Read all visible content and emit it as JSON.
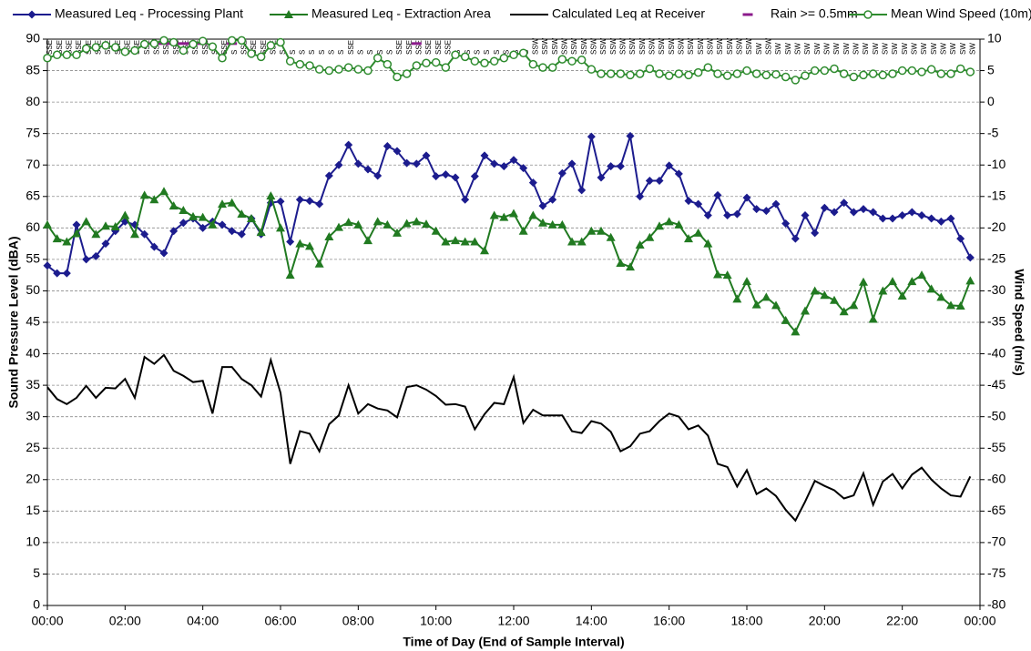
{
  "chart_data": {
    "type": "line",
    "x_label": "Time of Day (End of Sample Interval)",
    "y_label": "Sound Pressure Level (dBA)",
    "y2_label": "Wind Speed (m/s)",
    "xlim": [
      0,
      24
    ],
    "xticks": [
      {
        "value": 0,
        "label": "00:00"
      },
      {
        "value": 2,
        "label": "02:00"
      },
      {
        "value": 4,
        "label": "04:00"
      },
      {
        "value": 6,
        "label": "06:00"
      },
      {
        "value": 8,
        "label": "08:00"
      },
      {
        "value": 10,
        "label": "10:00"
      },
      {
        "value": 12,
        "label": "12:00"
      },
      {
        "value": 14,
        "label": "14:00"
      },
      {
        "value": 16,
        "label": "16:00"
      },
      {
        "value": 18,
        "label": "18:00"
      },
      {
        "value": 20,
        "label": "20:00"
      },
      {
        "value": 22,
        "label": "22:00"
      },
      {
        "value": 24,
        "label": "00:00"
      }
    ],
    "ylim": [
      0,
      90
    ],
    "yticks": [
      0,
      5,
      10,
      15,
      20,
      25,
      30,
      35,
      40,
      45,
      50,
      55,
      60,
      65,
      70,
      75,
      80,
      85,
      90
    ],
    "y2lim": [
      -80,
      10
    ],
    "y2ticks": [
      -80,
      -75,
      -70,
      -65,
      -60,
      -55,
      -50,
      -45,
      -40,
      -35,
      -30,
      -25,
      -20,
      -15,
      -10,
      -5,
      0,
      5,
      10
    ],
    "grid": true,
    "legend": "top",
    "x": [
      0,
      0.25,
      0.5,
      0.75,
      1,
      1.25,
      1.5,
      1.75,
      2,
      2.25,
      2.5,
      2.75,
      3,
      3.25,
      3.5,
      3.75,
      4,
      4.25,
      4.5,
      4.75,
      5,
      5.25,
      5.5,
      5.75,
      6,
      6.25,
      6.5,
      6.75,
      7,
      7.25,
      7.5,
      7.75,
      8,
      8.25,
      8.5,
      8.75,
      9,
      9.25,
      9.5,
      9.75,
      10,
      10.25,
      10.5,
      10.75,
      11,
      11.25,
      11.5,
      11.75,
      12,
      12.25,
      12.5,
      12.75,
      13,
      13.25,
      13.5,
      13.75,
      14,
      14.25,
      14.5,
      14.75,
      15,
      15.25,
      15.5,
      15.75,
      16,
      16.25,
      16.5,
      16.75,
      17,
      17.25,
      17.5,
      17.75,
      18,
      18.25,
      18.5,
      18.75,
      19,
      19.25,
      19.5,
      19.75,
      20,
      20.25,
      20.5,
      20.75,
      21,
      21.25,
      21.5,
      21.75,
      22,
      22.25,
      22.5,
      22.75,
      23,
      23.25,
      23.5,
      23.75
    ],
    "series": [
      {
        "name": "Measured Leq - Processing Plant",
        "color": "#1c1c8e",
        "marker": "diamond",
        "line": true,
        "values": [
          54,
          52.8,
          52.8,
          60.5,
          55,
          55.5,
          57.5,
          59.5,
          61,
          60.5,
          59,
          57,
          56,
          59.5,
          60.8,
          61.5,
          60,
          61,
          60.5,
          59.5,
          59,
          61.5,
          59,
          64,
          64.2,
          57.8,
          64.5,
          64.3,
          63.8,
          68.3,
          70,
          73.2,
          70.2,
          69.3,
          68.3,
          73,
          72.2,
          70.3,
          70.2,
          71.5,
          68.2,
          68.5,
          68,
          64.5,
          68.2,
          71.5,
          70.2,
          69.8,
          70.8,
          69.5,
          67.2,
          63.5,
          64.5,
          68.7,
          70.2,
          66,
          74.5,
          68,
          69.8,
          69.8,
          74.6,
          65,
          67.5,
          67.5,
          69.9,
          68.6,
          64.3,
          63.8,
          62,
          65.2,
          62,
          62.2,
          64.8,
          63,
          62.7,
          63.8,
          60.7,
          58.3,
          62,
          59.2,
          63.2,
          62.5,
          64,
          62.5,
          63,
          62.5,
          61.5,
          61.5,
          62,
          62.5,
          62,
          61.5,
          61,
          61.5,
          58.3,
          55.3
        ]
      },
      {
        "name": "Measured Leq - Extraction Area",
        "color": "#217a21",
        "marker": "triangle",
        "line": true,
        "values": [
          60.5,
          58.3,
          57.8,
          59.1,
          61,
          59,
          60.3,
          60.2,
          62,
          59,
          65.2,
          64.5,
          65.8,
          63.5,
          62.8,
          61.8,
          61.7,
          60.5,
          63.8,
          64,
          62.2,
          61.5,
          59.3,
          65.1,
          60,
          52.5,
          57.5,
          57.1,
          54.3,
          58.6,
          60.1,
          60.9,
          60.5,
          58,
          61,
          60.5,
          59.2,
          60.7,
          61,
          60.6,
          59.5,
          57.8,
          58,
          57.8,
          57.8,
          56.4,
          62,
          61.7,
          62.3,
          59.5,
          62,
          60.8,
          60.5,
          60.5,
          57.8,
          57.8,
          59.5,
          59.5,
          58.5,
          54.4,
          53.8,
          57.3,
          58.5,
          60.3,
          61,
          60.5,
          58.3,
          59.2,
          57.5,
          52.6,
          52.5,
          48.7,
          51.5,
          47.8,
          49,
          47.7,
          45.3,
          43.5,
          46.8,
          50,
          49.3,
          48.5,
          46.7,
          47.7,
          51.4,
          45.5,
          50,
          51.5,
          49.2,
          51.5,
          52.5,
          50.3,
          49,
          47.7,
          47.6,
          51.6
        ]
      },
      {
        "name": "Calculated Leq at Receiver",
        "color": "#000000",
        "marker": "none",
        "line": true,
        "values": [
          34.7,
          32.8,
          32,
          33,
          34.9,
          33,
          34.6,
          34.5,
          36,
          33,
          39.5,
          38.4,
          39.8,
          37.3,
          36.5,
          35.5,
          35.7,
          30.5,
          37.9,
          37.9,
          36,
          35,
          33.2,
          39,
          33.8,
          22.5,
          27.7,
          27.3,
          24.5,
          28.8,
          30.2,
          35,
          30.5,
          32,
          31.3,
          31,
          29.9,
          34.7,
          35,
          34.3,
          33.3,
          31.9,
          32,
          31.6,
          28,
          30.4,
          32.2,
          32,
          36.3,
          29,
          31.1,
          30.2,
          30.2,
          30.2,
          27.7,
          27.4,
          29.3,
          28.9,
          27.6,
          24.5,
          25.3,
          27.3,
          27.7,
          29.3,
          30.5,
          30,
          28,
          28.6,
          27,
          22.5,
          22,
          18.9,
          21.5,
          17.7,
          18.6,
          17.4,
          15.2,
          13.5,
          16.5,
          19.8,
          19,
          18.3,
          17,
          17.5,
          21,
          16,
          19.7,
          20.9,
          18.6,
          20.8,
          21.9,
          20,
          18.6,
          17.5,
          17.3,
          20.5
        ]
      },
      {
        "name": "Rain >= 0.5mm",
        "color": "#8b1a8b",
        "marker": "dash",
        "line": false,
        "axis": "y2",
        "values": [
          null,
          null,
          null,
          null,
          null,
          null,
          null,
          null,
          null,
          null,
          null,
          9.3,
          9.3,
          9.3,
          9.3,
          9.3,
          9.3,
          null,
          null,
          9.3,
          null,
          null,
          null,
          null,
          null,
          null,
          null,
          null,
          null,
          null,
          null,
          null,
          null,
          null,
          null,
          null,
          null,
          null,
          9.3,
          null,
          null,
          null,
          null,
          null,
          null,
          null,
          null,
          null,
          null,
          null,
          null,
          null,
          null,
          null,
          null,
          null,
          null,
          null,
          null,
          null,
          null,
          null,
          null,
          null,
          null,
          null,
          null,
          null,
          null,
          null,
          null,
          null,
          null,
          null,
          null,
          null,
          null,
          null,
          null,
          null,
          null,
          null,
          null,
          null,
          null,
          null,
          null,
          null,
          null,
          null,
          null,
          null,
          null,
          null,
          null,
          null
        ]
      },
      {
        "name": "Mean Wind Speed (10m)",
        "color": "#2e8b2e",
        "marker": "circle",
        "line": true,
        "axis": "y2",
        "values": [
          7,
          7.5,
          7.5,
          7.5,
          8.5,
          8.7,
          9,
          8.7,
          8,
          8.2,
          9.2,
          9.3,
          9.8,
          9.5,
          8.2,
          9.2,
          9.7,
          8.8,
          7,
          9.8,
          9.8,
          7.7,
          7.2,
          9,
          9.5,
          6.5,
          6,
          5.8,
          5.2,
          5,
          5.2,
          5.5,
          5.2,
          5,
          7,
          6,
          4,
          4.5,
          5.8,
          6.2,
          6.3,
          5.5,
          7.5,
          7.2,
          6.5,
          6.2,
          6.5,
          7,
          7.5,
          7.8,
          6,
          5.5,
          5.5,
          6.8,
          6.5,
          6.7,
          5.2,
          4.5,
          4.5,
          4.5,
          4.3,
          4.5,
          5.3,
          4.5,
          4.2,
          4.5,
          4.3,
          4.7,
          5.5,
          4.5,
          4.2,
          4.5,
          5,
          4.5,
          4.3,
          4.4,
          4,
          3.5,
          4.2,
          5,
          5,
          5.3,
          4.5,
          4,
          4.3,
          4.5,
          4.3,
          4.5,
          5,
          5,
          4.8,
          5.2,
          4.5,
          4.5,
          5.3,
          4.8
        ]
      }
    ],
    "wind_direction": [
      "SSE",
      "SSE",
      "SSE",
      "SSE",
      "SSE",
      "SSE",
      "SSE",
      "SSE",
      "SSE",
      "SSE",
      "SSE",
      "SSE",
      "SSE",
      "SSE",
      "SSE",
      "SSE",
      "SSE",
      "S",
      "SSE",
      "S",
      "SSE",
      "SSE",
      "SSE",
      "SSE",
      "S",
      "S",
      "S",
      "S",
      "S",
      "S",
      "S",
      "SSE",
      "S",
      "S",
      "S",
      "S",
      "SSE",
      "SSE",
      "SSE",
      "SSE",
      "SSE",
      "SSE",
      "S",
      "S",
      "S",
      "S",
      "S",
      "S",
      "S",
      "S",
      "SSW",
      "SSW",
      "SSW",
      "SSW",
      "SSW",
      "SSW",
      "SSW",
      "SSW",
      "SSW",
      "SSW",
      "SSW",
      "SSW",
      "SSW",
      "SSW",
      "SSW",
      "SSW",
      "SSW",
      "SSW",
      "SSW",
      "SSW",
      "SSW",
      "SSW",
      "SSW",
      "SW",
      "SSW",
      "SW",
      "SW",
      "SW",
      "SW",
      "SW",
      "SW",
      "SW",
      "SW",
      "SW",
      "SW",
      "SW",
      "SW",
      "SW",
      "SW",
      "SW",
      "SW",
      "SW",
      "SW",
      "SW",
      "SW",
      "SW"
    ]
  }
}
